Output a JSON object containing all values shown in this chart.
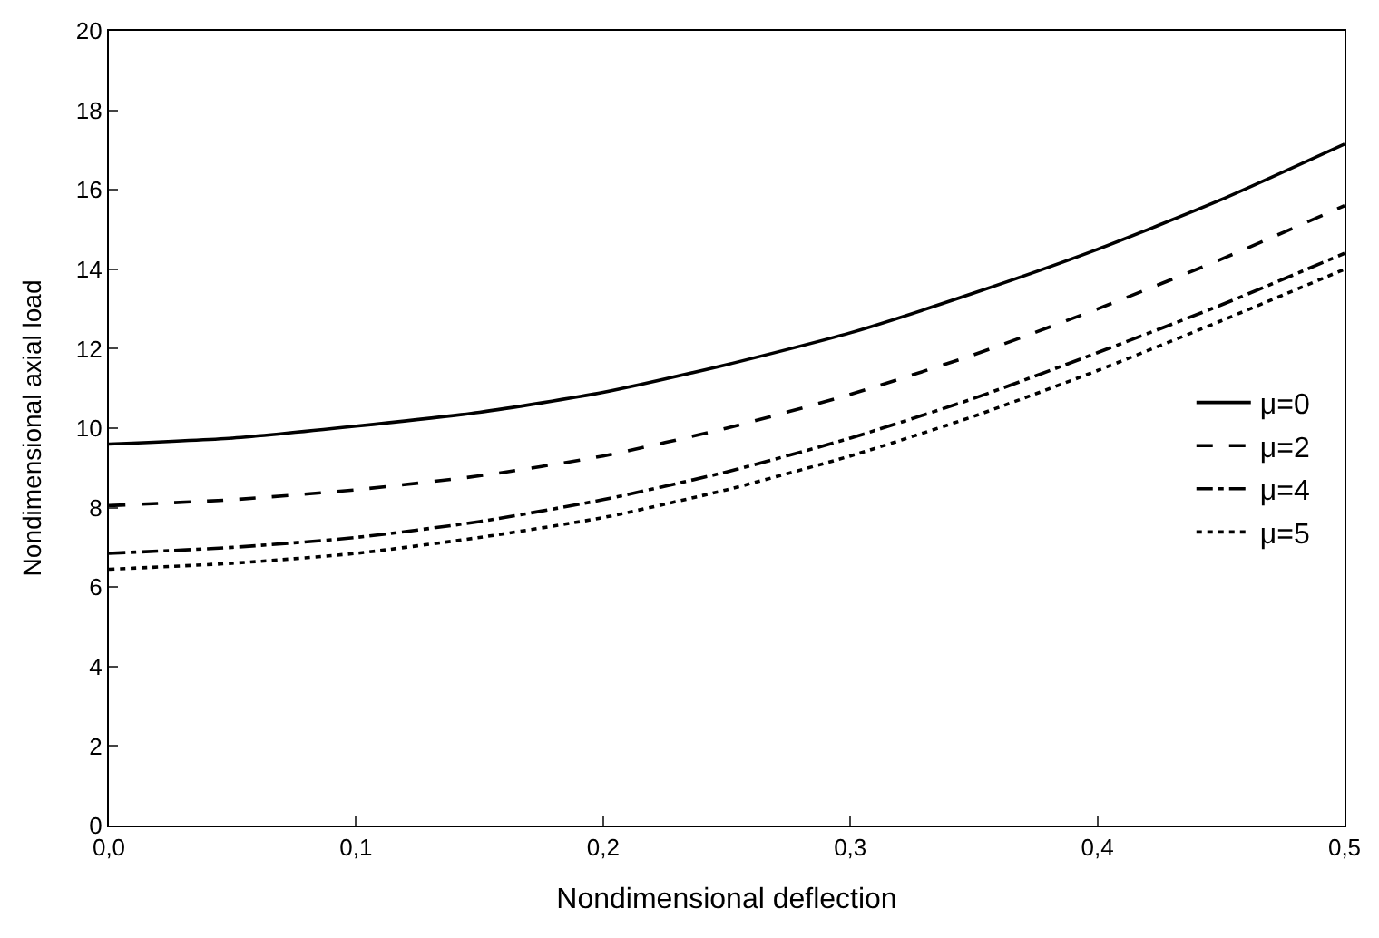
{
  "chart_data": {
    "type": "line",
    "xlabel": "Nondimensional deflection",
    "ylabel": "Nondimensional axial load",
    "x": [
      0,
      0.05,
      0.1,
      0.15,
      0.2,
      0.25,
      0.3,
      0.35,
      0.4,
      0.45,
      0.5
    ],
    "series": [
      {
        "name": "μ=0",
        "color": "#000000",
        "line_style": "solid",
        "values": [
          9.6,
          9.75,
          10.05,
          10.4,
          10.9,
          11.6,
          12.4,
          13.4,
          14.5,
          15.75,
          17.15
        ]
      },
      {
        "name": "μ=2",
        "color": "#000000",
        "line_style": "dashed",
        "values": [
          8.05,
          8.2,
          8.45,
          8.8,
          9.3,
          10.0,
          10.85,
          11.85,
          13.0,
          14.25,
          15.6
        ]
      },
      {
        "name": "μ=4",
        "color": "#000000",
        "line_style": "dashdot",
        "values": [
          6.85,
          7.0,
          7.25,
          7.65,
          8.2,
          8.9,
          9.75,
          10.75,
          11.9,
          13.1,
          14.4
        ]
      },
      {
        "name": "μ=5",
        "color": "#000000",
        "line_style": "dotted",
        "values": [
          6.45,
          6.6,
          6.85,
          7.25,
          7.75,
          8.45,
          9.3,
          10.3,
          11.45,
          12.7,
          14.0
        ]
      }
    ],
    "xlim": [
      0,
      0.5
    ],
    "ylim": [
      0,
      20
    ],
    "xticks": [
      {
        "value": 0,
        "label": "0,0"
      },
      {
        "value": 0.1,
        "label": "0,1"
      },
      {
        "value": 0.2,
        "label": "0,2"
      },
      {
        "value": 0.3,
        "label": "0,3"
      },
      {
        "value": 0.4,
        "label": "0,4"
      },
      {
        "value": 0.5,
        "label": "0,5"
      }
    ],
    "yticks": [
      0,
      2,
      4,
      6,
      8,
      10,
      12,
      14,
      16,
      18,
      20
    ],
    "legend": "right",
    "marker": "none"
  }
}
